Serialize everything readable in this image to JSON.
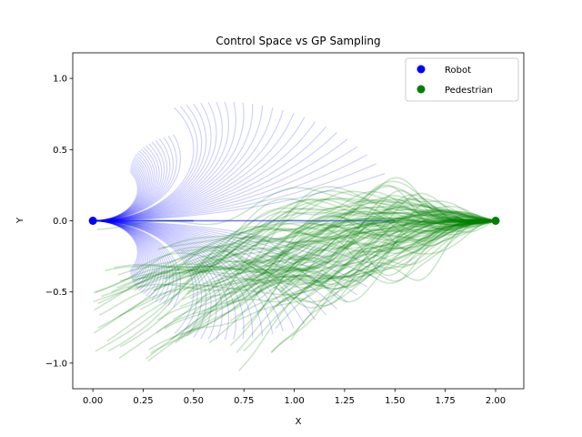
{
  "chart_data": {
    "type": "line",
    "title": "Control Space vs GP Sampling",
    "xlabel": "X",
    "ylabel": "Y",
    "xlim": [
      -0.1,
      2.14
    ],
    "ylim": [
      -1.18,
      1.18
    ],
    "xticks": [
      0.0,
      0.25,
      0.5,
      0.75,
      1.0,
      1.25,
      1.5,
      1.75,
      2.0
    ],
    "xtick_labels": [
      "0.00",
      "0.25",
      "0.50",
      "0.75",
      "1.00",
      "1.25",
      "1.50",
      "1.75",
      "2.00"
    ],
    "yticks": [
      -1.0,
      -0.5,
      0.0,
      0.5,
      1.0
    ],
    "ytick_labels": [
      "−1.0",
      "−0.5",
      "0.0",
      "0.5",
      "1.0"
    ],
    "grid": false,
    "legend_position": "top-right",
    "series": [
      {
        "name": "Robot",
        "color": "#0000ff",
        "marker_point": [
          0.0,
          0.0
        ],
        "kind": "control-space-arcs",
        "arc_fans": [
          {
            "angular_velocity": 0.0,
            "lengths": [
              0.5,
              1.5
            ]
          },
          {
            "angular_velocity_range": [
              0.3,
              2.0
            ],
            "length_range": [
              0.4,
              1.5
            ],
            "count": 24
          },
          {
            "angular_velocity_range": [
              -2.0,
              -0.3
            ],
            "length_range": [
              0.4,
              1.5
            ],
            "count": 24
          },
          {
            "angular_velocity_range": [
              2.3,
              4.5
            ],
            "length_range": [
              0.4,
              1.2
            ],
            "count": 22
          },
          {
            "angular_velocity_range": [
              -4.5,
              -2.3
            ],
            "length_range": [
              0.4,
              1.2
            ],
            "count": 22
          }
        ]
      },
      {
        "name": "Pedestrian",
        "color": "#008000",
        "marker_point": [
          2.0,
          0.0
        ],
        "kind": "gp-samples",
        "start": [
          2.0,
          0.0
        ],
        "end_x_range": [
          0.0,
          1.0
        ],
        "end_y_range": [
          -0.55,
          0.55
        ],
        "y_spread": 0.78,
        "sample_count": 110
      }
    ]
  }
}
